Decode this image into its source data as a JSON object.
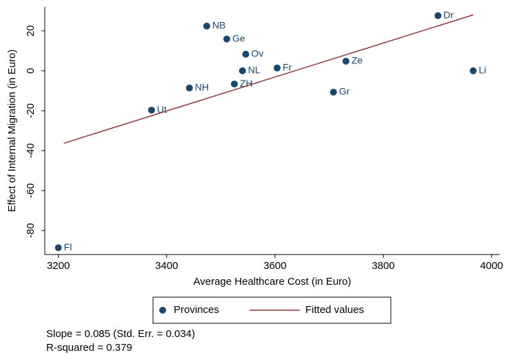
{
  "chart_data": {
    "type": "scatter",
    "xlabel": "Average Healthcare Cost (in Euro)",
    "ylabel": "Effect of Internal Migration (in Euro)",
    "xlim": [
      3175,
      4015
    ],
    "ylim": [
      -92,
      32
    ],
    "xticks": [
      3200,
      3400,
      3600,
      3800,
      4000
    ],
    "yticks": [
      -80,
      -60,
      -40,
      -20,
      0,
      20
    ],
    "series": [
      {
        "name": "Provinces",
        "type": "scatter",
        "color": "#1a476f",
        "x": [
          3474,
          3511,
          3546,
          3540,
          3604,
          3731,
          3901,
          3966,
          3442,
          3525,
          3708,
          3372,
          3200
        ],
        "values": [
          22.4,
          15.9,
          8.3,
          0,
          1.4,
          4.8,
          27.6,
          0,
          -8.6,
          -6.6,
          -10.7,
          -19.7,
          -88.6
        ],
        "labels": [
          "NB",
          "Ge",
          "Ov",
          "NL",
          "Fr",
          "Ze",
          "Dr",
          "Li",
          "NH",
          "ZH",
          "Gr",
          "Ut",
          "Fl"
        ]
      },
      {
        "name": "Fitted values",
        "type": "line",
        "color": "#90353b",
        "x": [
          3210,
          3966
        ],
        "values": [
          -36.3,
          28.0
        ]
      }
    ],
    "notes": [
      "Slope = 0.085 (Std. Err. = 0.034)",
      "R-squared = 0.379"
    ]
  }
}
